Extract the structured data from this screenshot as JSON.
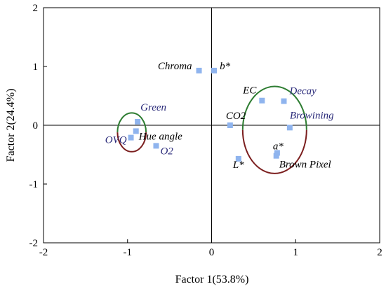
{
  "chart_data": {
    "type": "scatter",
    "title": "",
    "xlabel": "Factor 1(53.8%)",
    "ylabel": "Factor 2(24.4%)",
    "xlim": [
      -2,
      2
    ],
    "ylim": [
      -2,
      2
    ],
    "xticks": [
      -2,
      -1,
      0,
      1,
      2
    ],
    "yticks": [
      -2,
      -1,
      0,
      1,
      2
    ],
    "grid": false,
    "reference_lines": {
      "x": 0,
      "y": 0
    },
    "marker_color": "#8fb4ee",
    "points": [
      {
        "label": "Chroma",
        "x": -0.15,
        "y": 0.93,
        "label_color": "#000000"
      },
      {
        "label": "b*",
        "x": 0.03,
        "y": 0.93,
        "label_color": "#000000"
      },
      {
        "label": "Green",
        "x": -0.88,
        "y": 0.06,
        "label_color": "#2b2b7a"
      },
      {
        "label": "Hue angle",
        "x": -0.9,
        "y": -0.1,
        "label_color": "#000000"
      },
      {
        "label": "OVQ",
        "x": -0.96,
        "y": -0.21,
        "label_color": "#2b2b7a"
      },
      {
        "label": "O2",
        "x": -0.66,
        "y": -0.35,
        "label_color": "#2b2b7a"
      },
      {
        "label": "EC",
        "x": 0.6,
        "y": 0.42,
        "label_color": "#000000"
      },
      {
        "label": "Decay",
        "x": 0.86,
        "y": 0.41,
        "label_color": "#2b2b7a"
      },
      {
        "label": "CO2",
        "x": 0.22,
        "y": 0.0,
        "label_color": "#000000"
      },
      {
        "label": "Browining",
        "x": 0.93,
        "y": -0.04,
        "label_color": "#2b2b7a"
      },
      {
        "label": "a*",
        "x": 0.78,
        "y": -0.47,
        "label_color": "#000000"
      },
      {
        "label": "Brown Pixel",
        "x": 0.77,
        "y": -0.52,
        "label_color": "#000000"
      },
      {
        "label": "L*",
        "x": 0.32,
        "y": -0.57,
        "label_color": "#000000"
      }
    ],
    "ellipses": [
      {
        "cx": -0.95,
        "cy": -0.12,
        "rx": 0.17,
        "ry": 0.33,
        "stroke_top": "#2e7d32",
        "stroke_bottom": "#7b1e1e"
      },
      {
        "cx": 0.75,
        "cy": -0.08,
        "rx": 0.38,
        "ry": 0.74,
        "stroke_top": "#2e7d32",
        "stroke_bottom": "#7b1e1e"
      }
    ]
  }
}
